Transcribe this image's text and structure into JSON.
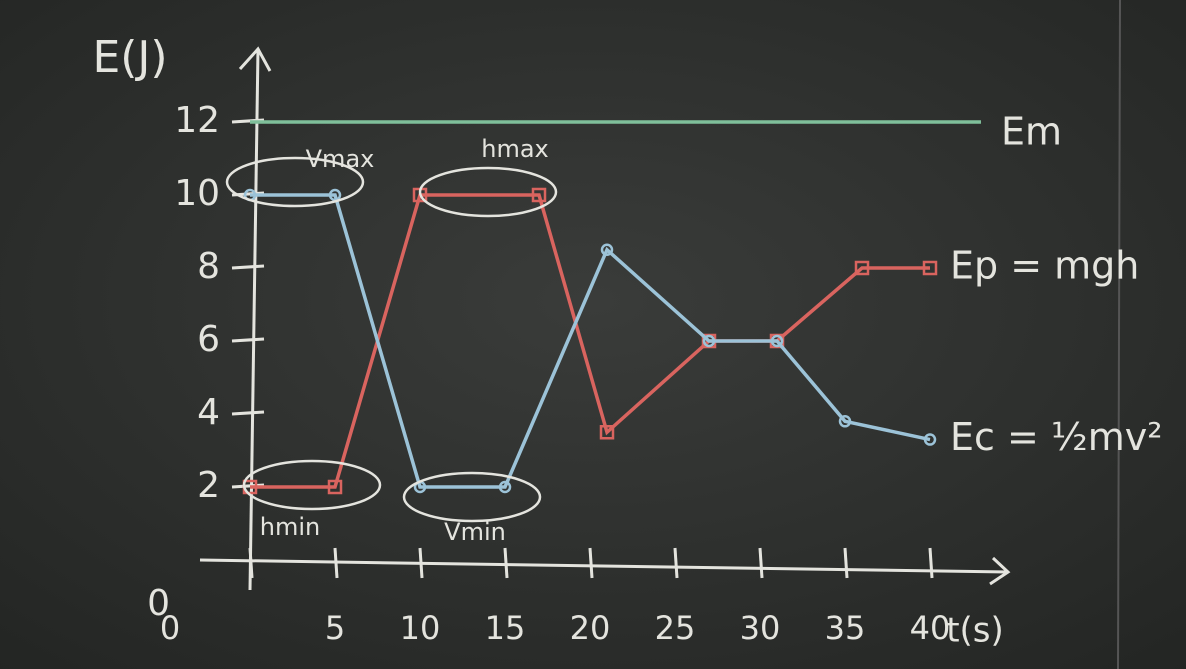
{
  "chart_data": {
    "type": "line",
    "xlabel": "t(s)",
    "ylabel": "E(J)",
    "xlim": [
      0,
      44
    ],
    "ylim": [
      0,
      14
    ],
    "xticks": [
      0,
      5,
      10,
      15,
      20,
      25,
      30,
      35,
      40
    ],
    "yticks": [
      0,
      2,
      4,
      6,
      8,
      10,
      12
    ],
    "series": [
      {
        "name": "Em",
        "color": "#7fbf9a",
        "x": [
          0,
          43
        ],
        "values": [
          12,
          12
        ]
      },
      {
        "name": "Ep = mgh",
        "color": "#d9645f",
        "x": [
          0,
          5,
          10,
          17,
          21,
          27,
          31,
          36,
          40
        ],
        "values": [
          2,
          2,
          10,
          10,
          3.5,
          6,
          6,
          8,
          8
        ]
      },
      {
        "name": "Ec = ½mv²",
        "color": "#9cc3d8",
        "x": [
          0,
          5,
          10,
          15,
          21,
          27,
          31,
          35,
          40
        ],
        "values": [
          10,
          10,
          2,
          2,
          8.5,
          6,
          6,
          3.8,
          3.3
        ]
      }
    ],
    "annotations": [
      "Vmax",
      "hmax",
      "hmin",
      "Vmin"
    ]
  }
}
